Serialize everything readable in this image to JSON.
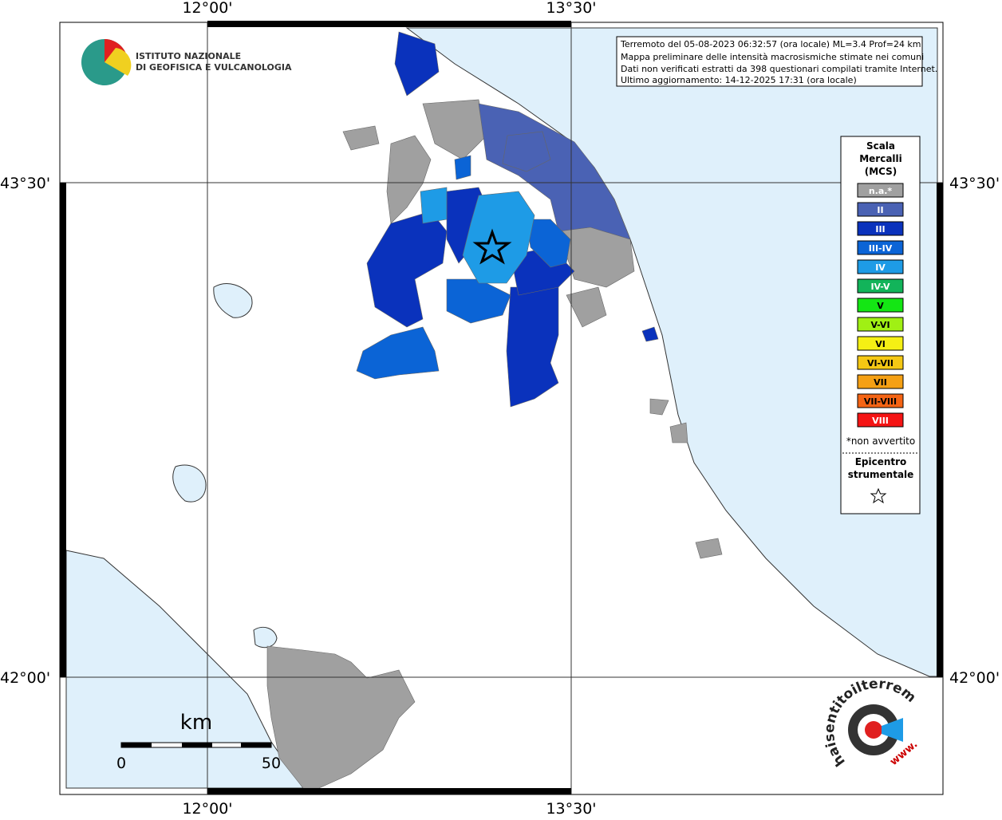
{
  "logo": {
    "line1": "ISTITUTO NAZIONALE",
    "line2": "DI GEOFISICA E VULCANOLOGIA"
  },
  "info": [
    "Terremoto del 05-08-2023 06:32:57 (ora locale) ML=3.4 Prof=24 km",
    "Mappa preliminare delle intensità macrosismiche stimate nei comuni",
    "Dati non verificati estratti da 398 questionari compilati tramite Internet.",
    "Ultimo aggiornamento: 14-12-2025 17:31 (ora locale)"
  ],
  "axes": {
    "lon_labels": [
      "12°00'",
      "13°30'"
    ],
    "lat_labels": [
      "43°30'",
      "42°00'"
    ]
  },
  "legend": {
    "title": [
      "Scala",
      "Mercalli",
      "(MCS)"
    ],
    "items": [
      {
        "label": "n.a.*",
        "color": "#a0a0a0"
      },
      {
        "label": "II",
        "color": "#4a62b4"
      },
      {
        "label": "III",
        "color": "#0a32bc"
      },
      {
        "label": "III-IV",
        "color": "#0b64d6"
      },
      {
        "label": "IV",
        "color": "#1e9be6"
      },
      {
        "label": "IV-V",
        "color": "#12b45a"
      },
      {
        "label": "V",
        "color": "#14e614"
      },
      {
        "label": "V-VI",
        "color": "#a0f014"
      },
      {
        "label": "VI",
        "color": "#f5f014"
      },
      {
        "label": "VI-VII",
        "color": "#f5c814"
      },
      {
        "label": "VII",
        "color": "#f5a014"
      },
      {
        "label": "VII-VIII",
        "color": "#f56414"
      },
      {
        "label": "VIII",
        "color": "#f51414"
      }
    ],
    "note": "*non avvertito",
    "epicenter": [
      "Epicentro",
      "strumentale"
    ]
  },
  "scale_bar": {
    "unit": "km",
    "ticks": [
      "0",
      "50"
    ]
  },
  "badge": {
    "text": "haisentitoilterremoto.it",
    "prefix": "www."
  }
}
